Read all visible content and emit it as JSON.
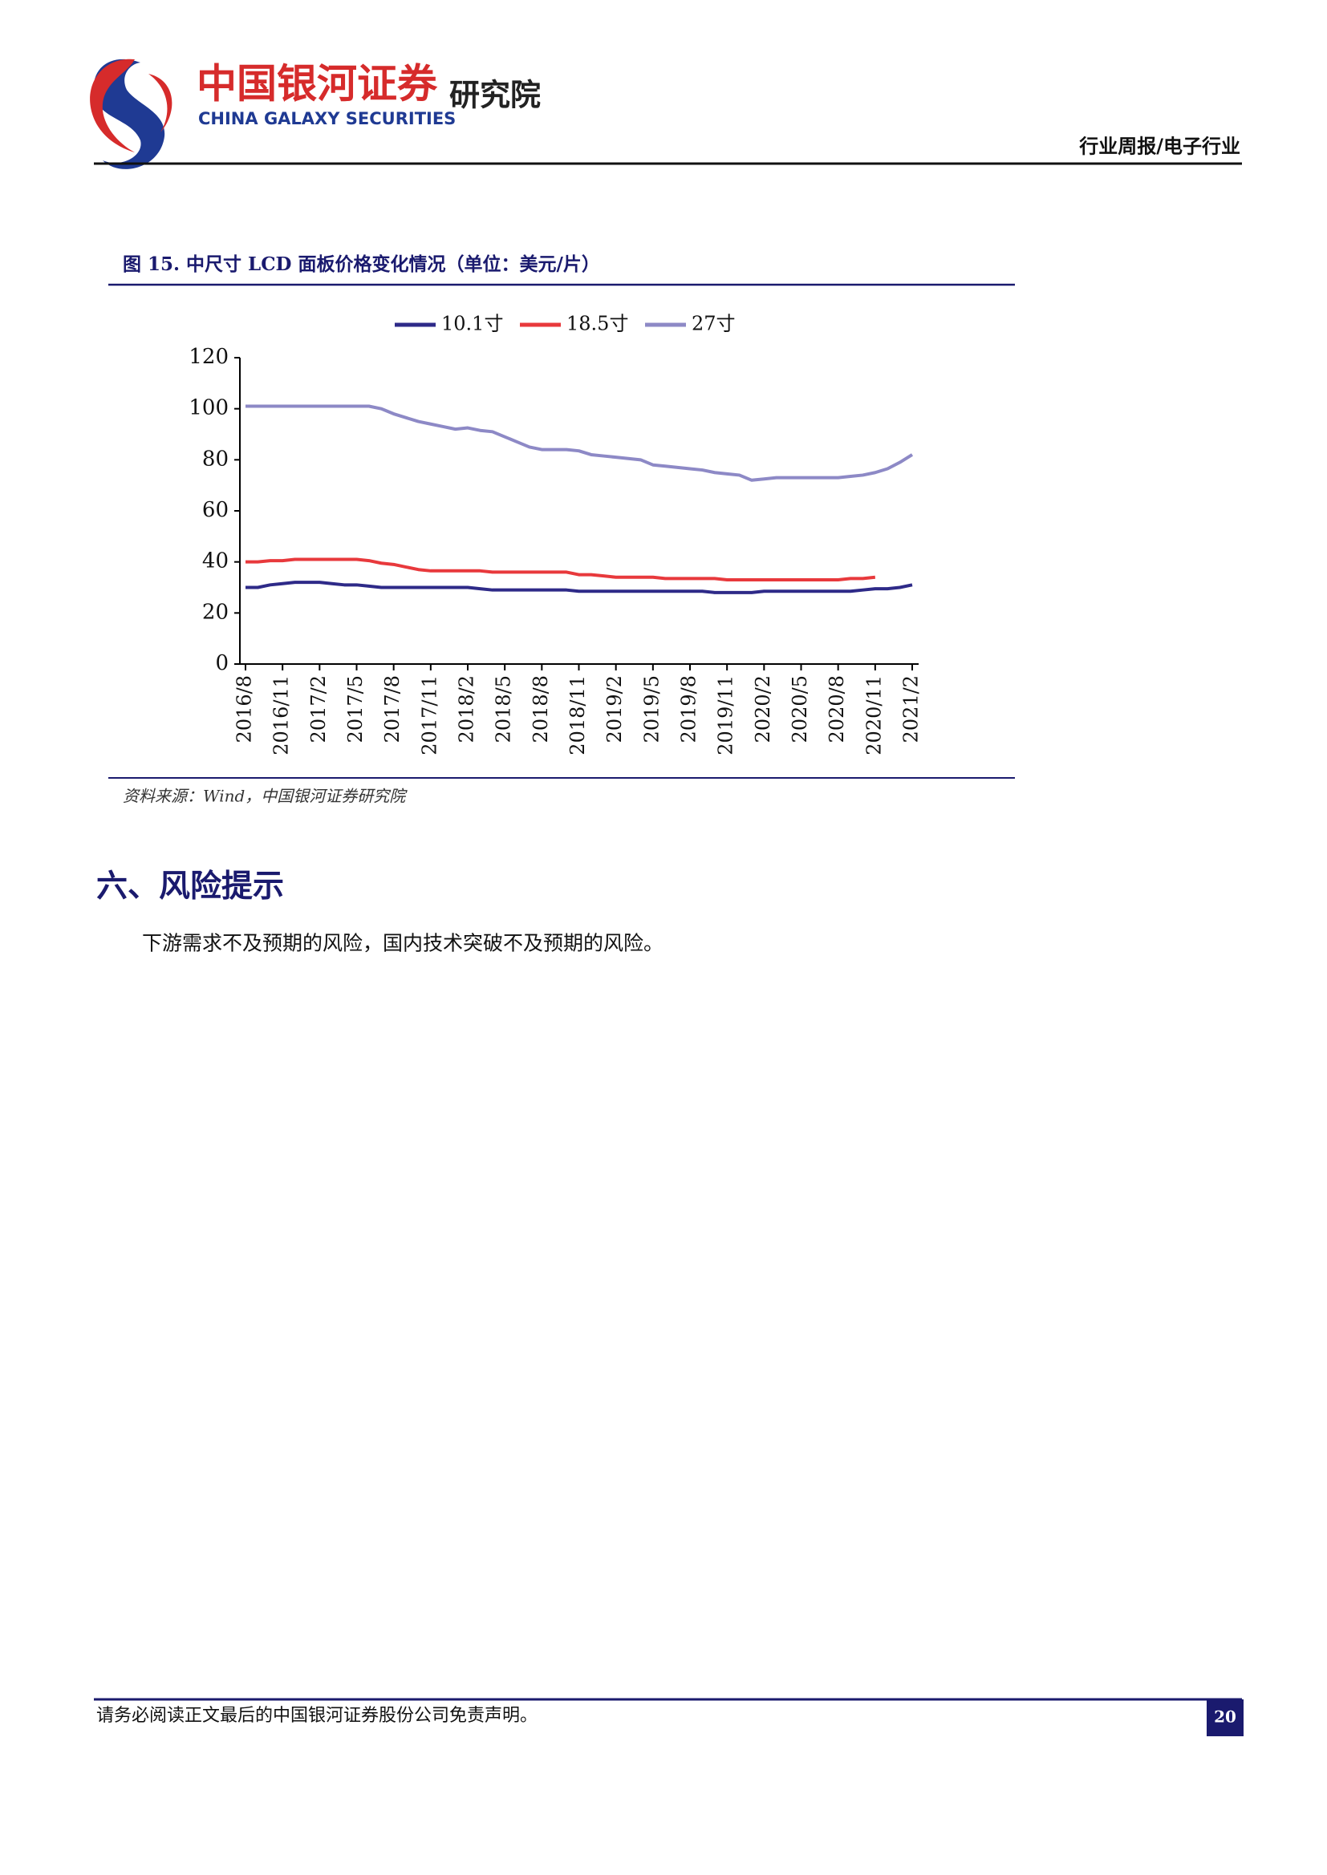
{
  "header": {
    "logo_cn": "中国银河证券",
    "logo_en": "CHINA GALAXY SECURITIES",
    "institute": "研究院",
    "report_type": "行业周报/电子行业"
  },
  "figure": {
    "title": "图 15. 中尺寸 LCD 面板价格变化情况（单位：美元/片）",
    "source": "资料来源：Wind，中国银河证券研究院"
  },
  "chart_data": {
    "type": "line",
    "legend": "top",
    "categories": [
      "2016/8",
      null,
      null,
      "2016/11",
      null,
      null,
      "2017/2",
      null,
      null,
      "2017/5",
      null,
      null,
      "2017/8",
      null,
      null,
      "2017/11",
      null,
      null,
      "2018/2",
      null,
      null,
      "2018/5",
      null,
      null,
      "2018/8",
      null,
      null,
      "2018/11",
      null,
      null,
      "2019/2",
      null,
      null,
      "2019/5",
      null,
      null,
      "2019/8",
      null,
      null,
      "2019/11",
      null,
      null,
      "2020/2",
      null,
      null,
      "2020/5",
      null,
      null,
      "2020/8",
      null,
      null,
      "2020/11",
      null,
      null,
      "2021/2"
    ],
    "series": [
      {
        "name": "10.1寸",
        "color": "#2e2a88",
        "values": [
          30,
          30,
          31,
          31.5,
          32,
          32,
          32,
          31.5,
          31,
          31,
          30.5,
          30,
          30,
          30,
          30,
          30,
          30,
          30,
          30,
          29.5,
          29,
          29,
          29,
          29,
          29,
          29,
          29,
          28.5,
          28.5,
          28.5,
          28.5,
          28.5,
          28.5,
          28.5,
          28.5,
          28.5,
          28.5,
          28.5,
          28,
          28,
          28,
          28,
          28.5,
          28.5,
          28.5,
          28.5,
          28.5,
          28.5,
          28.5,
          28.5,
          29,
          29.5,
          29.5,
          30,
          31
        ]
      },
      {
        "name": "18.5寸",
        "color": "#e8393c",
        "values": [
          40,
          40,
          40.5,
          40.5,
          41,
          41,
          41,
          41,
          41,
          41,
          40.5,
          39.5,
          39,
          38,
          37,
          36.5,
          36.5,
          36.5,
          36.5,
          36.5,
          36,
          36,
          36,
          36,
          36,
          36,
          36,
          35,
          35,
          34.5,
          34,
          34,
          34,
          34,
          33.5,
          33.5,
          33.5,
          33.5,
          33.5,
          33,
          33,
          33,
          33,
          33,
          33,
          33,
          33,
          33,
          33,
          33.5,
          33.5,
          34,
          null,
          null,
          null
        ]
      },
      {
        "name": "27寸",
        "color": "#8d89c6",
        "values": [
          101,
          101,
          101,
          101,
          101,
          101,
          101,
          101,
          101,
          101,
          101,
          100,
          98,
          96.5,
          95,
          94,
          93,
          92,
          92.5,
          91.5,
          91,
          89,
          87,
          85,
          84,
          84,
          84,
          83.5,
          82,
          81.5,
          81,
          80.5,
          80,
          78,
          77.5,
          77,
          76.5,
          76,
          75,
          74.5,
          74,
          72,
          72.5,
          73,
          73,
          73,
          73,
          73,
          73,
          73.5,
          74,
          75,
          76.5,
          79,
          82
        ]
      }
    ],
    "ylim": [
      0,
      120
    ],
    "yticks": [
      0,
      20,
      40,
      60,
      80,
      100,
      120
    ]
  },
  "section": {
    "heading": "六、风险提示",
    "body": "下游需求不及预期的风险，国内技术突破不及预期的风险。"
  },
  "footer": {
    "disclaimer": "请务必阅读正文最后的中国银河证券股份公司免责声明。",
    "page_number": 20
  }
}
